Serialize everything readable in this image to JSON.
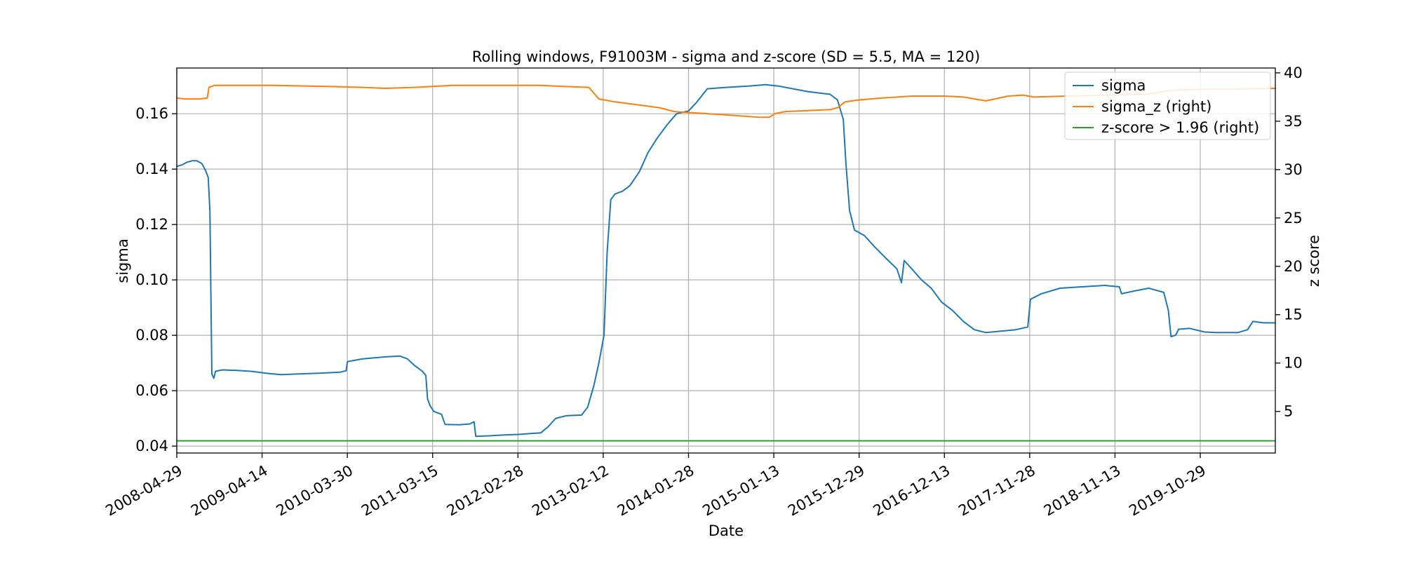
{
  "chart_data": {
    "type": "line",
    "title": "Rolling windows, F91003M - sigma and z-score (SD = 5.5, MA = 120)",
    "xlabel": "Date",
    "ylabel_left": "sigma",
    "ylabel_right": "z score",
    "x_ticks": [
      "2008-04-29",
      "2009-04-14",
      "2010-03-30",
      "2011-03-15",
      "2012-02-28",
      "2013-02-12",
      "2014-01-28",
      "2015-01-13",
      "2015-12-29",
      "2016-12-13",
      "2017-11-28",
      "2018-11-13",
      "2019-10-29"
    ],
    "x_range": [
      "2008-04-29",
      "2020-09-01"
    ],
    "y_left_ticks": [
      "0.04",
      "0.06",
      "0.08",
      "0.10",
      "0.12",
      "0.14",
      "0.16"
    ],
    "y_left_range": [
      0.0375,
      0.1765
    ],
    "y_right_ticks": [
      "5",
      "10",
      "15",
      "20",
      "25",
      "30",
      "35",
      "40"
    ],
    "y_right_range": [
      0.7,
      40.5
    ],
    "grid": true,
    "legend_position": "top-right",
    "colors": {
      "sigma": "#1f77b4",
      "sigma_z": "#ff7f0e",
      "threshold": "#2ca02c"
    },
    "series": [
      {
        "name": "sigma",
        "axis": "left",
        "points": [
          [
            "2008-04-29",
            0.141
          ],
          [
            "2008-05-20",
            0.1415
          ],
          [
            "2008-06-10",
            0.1425
          ],
          [
            "2008-07-01",
            0.143
          ],
          [
            "2008-07-20",
            0.143
          ],
          [
            "2008-08-10",
            0.142
          ],
          [
            "2008-08-25",
            0.1395
          ],
          [
            "2008-09-05",
            0.137
          ],
          [
            "2008-09-12",
            0.125
          ],
          [
            "2008-09-20",
            0.066
          ],
          [
            "2008-09-28",
            0.0645
          ],
          [
            "2008-10-05",
            0.067
          ],
          [
            "2008-11-01",
            0.0675
          ],
          [
            "2009-01-01",
            0.0673
          ],
          [
            "2009-03-01",
            0.067
          ],
          [
            "2009-05-01",
            0.0663
          ],
          [
            "2009-07-01",
            0.0658
          ],
          [
            "2009-09-01",
            0.066
          ],
          [
            "2009-12-01",
            0.0663
          ],
          [
            "2010-03-01",
            0.0667
          ],
          [
            "2010-03-25",
            0.0672
          ],
          [
            "2010-03-30",
            0.0705
          ],
          [
            "2010-06-01",
            0.0715
          ],
          [
            "2010-09-01",
            0.0722
          ],
          [
            "2010-11-01",
            0.0725
          ],
          [
            "2010-12-01",
            0.0715
          ],
          [
            "2011-01-01",
            0.069
          ],
          [
            "2011-02-01",
            0.067
          ],
          [
            "2011-02-15",
            0.0655
          ],
          [
            "2011-02-22",
            0.057
          ],
          [
            "2011-03-05",
            0.0545
          ],
          [
            "2011-03-20",
            0.0525
          ],
          [
            "2011-04-20",
            0.0515
          ],
          [
            "2011-05-05",
            0.0478
          ],
          [
            "2011-07-01",
            0.0477
          ],
          [
            "2011-08-15",
            0.048
          ],
          [
            "2011-09-01",
            0.0488
          ],
          [
            "2011-09-08",
            0.0435
          ],
          [
            "2011-11-01",
            0.0437
          ],
          [
            "2012-01-01",
            0.044
          ],
          [
            "2012-03-01",
            0.0442
          ],
          [
            "2012-06-01",
            0.0448
          ],
          [
            "2012-07-01",
            0.047
          ],
          [
            "2012-08-01",
            0.05
          ],
          [
            "2012-09-15",
            0.051
          ],
          [
            "2012-11-15",
            0.0512
          ],
          [
            "2012-12-10",
            0.054
          ],
          [
            "2013-01-05",
            0.062
          ],
          [
            "2013-01-25",
            0.07
          ],
          [
            "2013-02-15",
            0.08
          ],
          [
            "2013-02-28",
            0.11
          ],
          [
            "2013-03-15",
            0.129
          ],
          [
            "2013-04-01",
            0.131
          ],
          [
            "2013-05-01",
            0.132
          ],
          [
            "2013-06-01",
            0.134
          ],
          [
            "2013-07-10",
            0.139
          ],
          [
            "2013-08-15",
            0.146
          ],
          [
            "2013-09-20",
            0.151
          ],
          [
            "2013-11-01",
            0.156
          ],
          [
            "2013-12-10",
            0.16
          ],
          [
            "2014-01-28",
            0.161
          ],
          [
            "2014-03-01",
            0.164
          ],
          [
            "2014-04-15",
            0.169
          ],
          [
            "2014-07-01",
            0.1695
          ],
          [
            "2014-10-01",
            0.17
          ],
          [
            "2014-12-10",
            0.1705
          ],
          [
            "2015-02-01",
            0.17
          ],
          [
            "2015-04-01",
            0.169
          ],
          [
            "2015-06-01",
            0.168
          ],
          [
            "2015-09-01",
            0.167
          ],
          [
            "2015-10-01",
            0.165
          ],
          [
            "2015-10-25",
            0.158
          ],
          [
            "2015-11-05",
            0.142
          ],
          [
            "2015-11-20",
            0.125
          ],
          [
            "2015-12-10",
            0.118
          ],
          [
            "2016-01-20",
            0.116
          ],
          [
            "2016-03-01",
            0.112
          ],
          [
            "2016-04-15",
            0.108
          ],
          [
            "2016-06-01",
            0.104
          ],
          [
            "2016-06-20",
            0.099
          ],
          [
            "2016-07-01",
            0.107
          ],
          [
            "2016-08-01",
            0.104
          ],
          [
            "2016-09-10",
            0.1
          ],
          [
            "2016-10-20",
            0.097
          ],
          [
            "2016-12-01",
            0.092
          ],
          [
            "2017-01-15",
            0.089
          ],
          [
            "2017-03-01",
            0.085
          ],
          [
            "2017-04-15",
            0.082
          ],
          [
            "2017-06-01",
            0.081
          ],
          [
            "2017-08-01",
            0.0815
          ],
          [
            "2017-10-01",
            0.082
          ],
          [
            "2017-11-20",
            0.083
          ],
          [
            "2017-12-01",
            0.093
          ],
          [
            "2018-01-15",
            0.095
          ],
          [
            "2018-04-01",
            0.097
          ],
          [
            "2018-07-01",
            0.0975
          ],
          [
            "2018-10-01",
            0.098
          ],
          [
            "2018-12-01",
            0.0975
          ],
          [
            "2018-12-10",
            0.095
          ],
          [
            "2019-02-01",
            0.096
          ],
          [
            "2019-04-01",
            0.097
          ],
          [
            "2019-06-01",
            0.0955
          ],
          [
            "2019-06-20",
            0.089
          ],
          [
            "2019-07-01",
            0.0795
          ],
          [
            "2019-07-20",
            0.08
          ],
          [
            "2019-08-01",
            0.0822
          ],
          [
            "2019-09-15",
            0.0825
          ],
          [
            "2019-11-15",
            0.0812
          ],
          [
            "2020-01-01",
            0.081
          ],
          [
            "2020-04-01",
            0.081
          ],
          [
            "2020-05-10",
            0.082
          ],
          [
            "2020-06-01",
            0.085
          ],
          [
            "2020-07-15",
            0.0845
          ],
          [
            "2020-09-01",
            0.0845
          ]
        ]
      },
      {
        "name": "sigma_z (right)",
        "axis": "right",
        "points": [
          [
            "2008-04-29",
            37.4
          ],
          [
            "2008-06-01",
            37.3
          ],
          [
            "2008-08-01",
            37.3
          ],
          [
            "2008-09-01",
            37.4
          ],
          [
            "2008-09-08",
            38.5
          ],
          [
            "2008-10-01",
            38.7
          ],
          [
            "2009-01-01",
            38.7
          ],
          [
            "2009-06-01",
            38.7
          ],
          [
            "2010-01-01",
            38.6
          ],
          [
            "2010-06-01",
            38.5
          ],
          [
            "2010-09-01",
            38.4
          ],
          [
            "2011-01-01",
            38.5
          ],
          [
            "2011-06-01",
            38.7
          ],
          [
            "2011-12-01",
            38.7
          ],
          [
            "2012-06-01",
            38.7
          ],
          [
            "2012-09-01",
            38.6
          ],
          [
            "2012-12-15",
            38.5
          ],
          [
            "2013-01-25",
            37.3
          ],
          [
            "2013-04-01",
            37.0
          ],
          [
            "2013-07-01",
            36.7
          ],
          [
            "2013-10-01",
            36.4
          ],
          [
            "2013-12-01",
            36.0
          ],
          [
            "2014-01-28",
            35.9
          ],
          [
            "2014-04-01",
            35.8
          ],
          [
            "2014-08-01",
            35.6
          ],
          [
            "2014-11-15",
            35.4
          ],
          [
            "2014-12-25",
            35.4
          ],
          [
            "2015-01-20",
            35.8
          ],
          [
            "2015-03-01",
            36.0
          ],
          [
            "2015-06-01",
            36.1
          ],
          [
            "2015-09-01",
            36.2
          ],
          [
            "2015-10-01",
            36.4
          ],
          [
            "2015-11-01",
            37.0
          ],
          [
            "2015-12-29",
            37.2
          ],
          [
            "2016-04-01",
            37.4
          ],
          [
            "2016-08-01",
            37.6
          ],
          [
            "2016-12-13",
            37.6
          ],
          [
            "2017-03-01",
            37.5
          ],
          [
            "2017-06-01",
            37.1
          ],
          [
            "2017-09-01",
            37.6
          ],
          [
            "2017-11-01",
            37.7
          ],
          [
            "2017-12-15",
            37.5
          ],
          [
            "2018-05-01",
            37.6
          ],
          [
            "2018-11-13",
            37.7
          ],
          [
            "2019-04-01",
            37.8
          ],
          [
            "2019-07-01",
            38.2
          ],
          [
            "2019-10-29",
            38.3
          ],
          [
            "2020-03-01",
            38.3
          ],
          [
            "2020-09-01",
            38.4
          ]
        ]
      },
      {
        "name": "z-score > 1.96 (right)",
        "axis": "right",
        "points": [
          [
            "2008-04-29",
            1.96
          ],
          [
            "2020-09-01",
            1.96
          ]
        ]
      }
    ],
    "legend": [
      "sigma",
      "sigma_z (right)",
      "z-score > 1.96 (right)"
    ]
  }
}
